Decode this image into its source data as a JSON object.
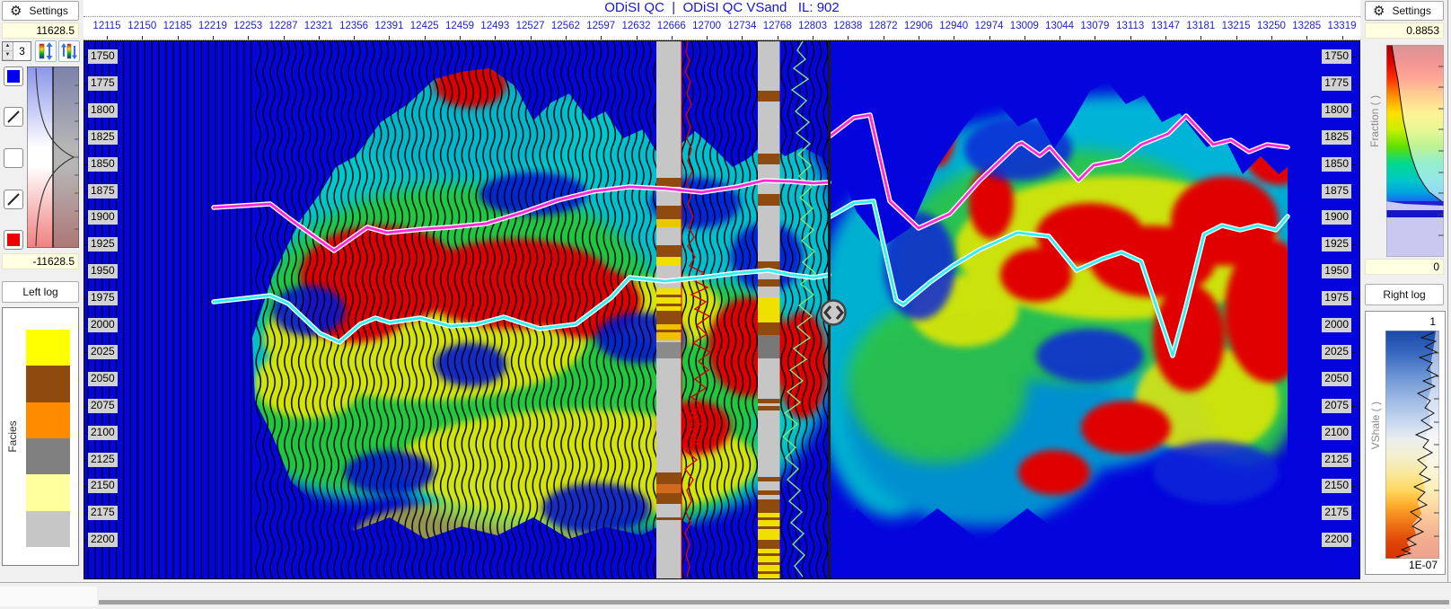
{
  "left_panel": {
    "header": {
      "icon": "gear-icon",
      "label": "Settings"
    },
    "scale_max": "11628.5",
    "scale_min": "-11628.5",
    "trace_overlap_value": "3",
    "left_log_button": "Left log",
    "facies": {
      "label": "Facies",
      "colors": [
        "#FFFF00",
        "#8F4A10",
        "#FF8C00",
        "#808080",
        "#FFFF9E",
        "#C6C6C6"
      ]
    },
    "swatch_colors": {
      "positive": "#0000EE",
      "zero": "#FFFFFF",
      "negative": "#EE0000"
    }
  },
  "main": {
    "title": "ODiSI QC  |  ODiSI QC VSand   IL: 902",
    "trace_ticks": [
      12115,
      12150,
      12185,
      12219,
      12253,
      12287,
      12321,
      12356,
      12391,
      12425,
      12459,
      12493,
      12527,
      12562,
      12597,
      12632,
      12666,
      12700,
      12734,
      12768,
      12803,
      12838,
      12872,
      12906,
      12940,
      12974,
      13009,
      13044,
      13079,
      13113,
      13147,
      13181,
      13215,
      13250,
      13285,
      13319
    ],
    "depth_ticks": [
      1750,
      1775,
      1800,
      1825,
      1850,
      1875,
      1900,
      1925,
      1950,
      1975,
      2000,
      2025,
      2050,
      2075,
      2100,
      2125,
      2150,
      2175,
      2200
    ],
    "horizon_colors": {
      "top": "#FF2AD4",
      "base": "#30F0F0"
    }
  },
  "right_panel": {
    "header": {
      "icon": "gear-icon",
      "label": "Settings"
    },
    "fraction": {
      "max": "0.8853",
      "min": "0",
      "axis_label": "Fraction ( )"
    },
    "right_log_button": "Right log",
    "vshale": {
      "max": "1",
      "min": "1E-07",
      "axis_label": "VShale ( )"
    }
  }
}
